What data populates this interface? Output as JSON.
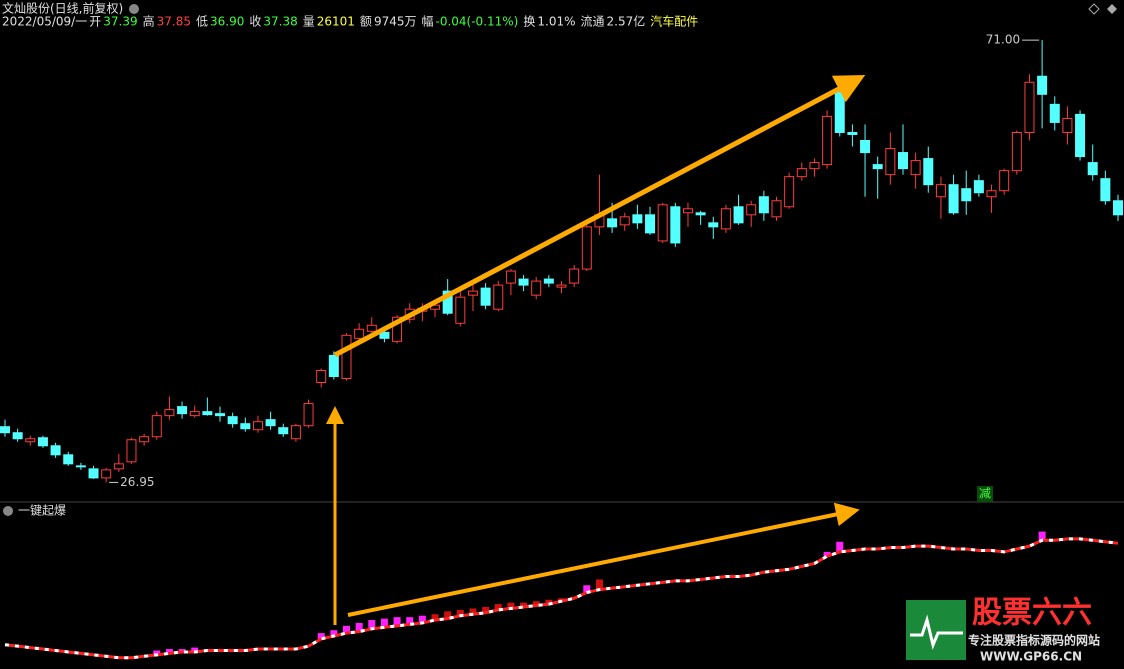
{
  "header": {
    "title": "文灿股份(日线,前复权)",
    "date": "2022/05/09/一",
    "stats": [
      {
        "label": "开",
        "value": "37.39",
        "color": "#3cff3c"
      },
      {
        "label": "高",
        "value": "37.85",
        "color": "#ff4040"
      },
      {
        "label": "低",
        "value": "36.90",
        "color": "#3cff3c"
      },
      {
        "label": "收",
        "value": "37.38",
        "color": "#3cff3c"
      },
      {
        "label": "量",
        "value": "26101",
        "color": "#ffff40"
      },
      {
        "label": "额",
        "value": "9745万",
        "color": "#e0e0e0"
      },
      {
        "label": "幅",
        "value": "-0.04(-0.11%)",
        "color": "#3cff3c"
      },
      {
        "label": "换",
        "value": "1.01%",
        "color": "#e0e0e0"
      },
      {
        "label": "流通",
        "value": "2.57亿",
        "color": "#e0e0e0"
      }
    ],
    "sector": "汽车配件"
  },
  "chart_data": {
    "type": "candlestick",
    "ylim": [
      25.2,
      73.0
    ],
    "up_color": "#ff3c3c",
    "down_color": "#54ffff",
    "annotations": {
      "high": {
        "value": 71,
        "label": "71.00"
      },
      "low": 26.95
    },
    "candles": [
      [
        32.5,
        33.2,
        31.5,
        31.9
      ],
      [
        31.9,
        32.3,
        31.0,
        31.3
      ],
      [
        31.0,
        31.6,
        30.6,
        31.3
      ],
      [
        31.4,
        31.6,
        30.4,
        30.6
      ],
      [
        30.6,
        30.9,
        29.4,
        29.7
      ],
      [
        29.7,
        30.0,
        28.6,
        28.8
      ],
      [
        28.6,
        28.9,
        28.2,
        28.5
      ],
      [
        28.3,
        28.6,
        27.3,
        27.4
      ],
      [
        27.4,
        28.4,
        26.95,
        28.2
      ],
      [
        28.3,
        29.8,
        28.0,
        28.8
      ],
      [
        29.0,
        31.4,
        28.8,
        31.2
      ],
      [
        31.0,
        31.8,
        30.6,
        31.5
      ],
      [
        31.5,
        34.0,
        31.2,
        33.6
      ],
      [
        33.6,
        35.5,
        33.2,
        34.2
      ],
      [
        34.5,
        35.0,
        33.3,
        33.8
      ],
      [
        33.6,
        34.6,
        33.4,
        34.0
      ],
      [
        34.0,
        35.4,
        33.6,
        33.7
      ],
      [
        33.8,
        34.5,
        33.0,
        33.6
      ],
      [
        33.5,
        33.9,
        32.4,
        32.8
      ],
      [
        32.8,
        33.4,
        32.0,
        32.3
      ],
      [
        32.2,
        33.6,
        31.9,
        33.0
      ],
      [
        33.2,
        34.0,
        32.2,
        32.6
      ],
      [
        32.4,
        32.8,
        31.5,
        31.8
      ],
      [
        31.3,
        32.8,
        31.0,
        32.6
      ],
      [
        32.6,
        35.2,
        32.4,
        34.8
      ],
      [
        36.9,
        38.3,
        36.4,
        38.1
      ],
      [
        39.6,
        40.0,
        37.2,
        37.5
      ],
      [
        37.3,
        41.8,
        37.1,
        41.6
      ],
      [
        41.3,
        42.8,
        40.8,
        42.2
      ],
      [
        42.0,
        43.4,
        41.8,
        42.6
      ],
      [
        41.9,
        42.5,
        40.9,
        41.3
      ],
      [
        41.0,
        43.6,
        40.8,
        43.4
      ],
      [
        43.2,
        44.8,
        42.8,
        44.2
      ],
      [
        44.0,
        44.8,
        43.0,
        44.3
      ],
      [
        44.2,
        44.8,
        43.4,
        44.6
      ],
      [
        46.0,
        47.2,
        43.6,
        43.8
      ],
      [
        42.8,
        46.2,
        42.5,
        45.4
      ],
      [
        45.6,
        46.8,
        44.0,
        46.0
      ],
      [
        46.3,
        46.8,
        44.2,
        44.6
      ],
      [
        44.2,
        47.0,
        44.0,
        46.6
      ],
      [
        46.8,
        48.2,
        45.6,
        48.0
      ],
      [
        47.2,
        47.6,
        46.0,
        46.6
      ],
      [
        45.6,
        47.4,
        45.2,
        47.0
      ],
      [
        47.2,
        47.6,
        46.4,
        46.8
      ],
      [
        46.4,
        47.0,
        45.8,
        46.6
      ],
      [
        46.8,
        48.6,
        46.4,
        48.2
      ],
      [
        48.2,
        52.6,
        48.0,
        52.4
      ],
      [
        52.4,
        57.6,
        51.6,
        53.6
      ],
      [
        53.2,
        54.8,
        51.8,
        52.4
      ],
      [
        52.6,
        53.8,
        52.0,
        53.4
      ],
      [
        53.6,
        54.6,
        52.2,
        52.8
      ],
      [
        53.6,
        54.4,
        51.6,
        51.8
      ],
      [
        51.0,
        54.8,
        50.8,
        54.6
      ],
      [
        54.4,
        54.8,
        50.4,
        50.8
      ],
      [
        53.8,
        54.8,
        52.4,
        54.2
      ],
      [
        53.8,
        54.0,
        52.6,
        53.6
      ],
      [
        52.8,
        53.4,
        51.2,
        52.4
      ],
      [
        52.2,
        54.6,
        51.8,
        54.2
      ],
      [
        54.4,
        55.6,
        52.6,
        52.8
      ],
      [
        53.6,
        55.0,
        52.4,
        54.6
      ],
      [
        55.4,
        56.0,
        53.0,
        53.8
      ],
      [
        53.4,
        55.4,
        53.0,
        55.0
      ],
      [
        54.4,
        57.8,
        54.2,
        57.4
      ],
      [
        57.4,
        58.8,
        57.0,
        58.2
      ],
      [
        58.2,
        59.2,
        57.4,
        58.8
      ],
      [
        58.6,
        64.0,
        58.2,
        63.4
      ],
      [
        65.8,
        66.4,
        61.4,
        61.8
      ],
      [
        61.8,
        62.6,
        60.4,
        61.6
      ],
      [
        61.0,
        62.6,
        55.4,
        59.8
      ],
      [
        58.6,
        59.4,
        55.2,
        58.2
      ],
      [
        57.6,
        61.8,
        56.6,
        60.2
      ],
      [
        59.8,
        62.6,
        57.6,
        58.2
      ],
      [
        57.6,
        59.8,
        56.2,
        59.0
      ],
      [
        59.2,
        60.4,
        55.8,
        56.6
      ],
      [
        55.4,
        57.4,
        53.2,
        56.6
      ],
      [
        56.6,
        57.6,
        53.6,
        53.8
      ],
      [
        56.2,
        58.0,
        53.6,
        55.0
      ],
      [
        57.0,
        57.6,
        55.4,
        55.8
      ],
      [
        55.4,
        56.6,
        53.8,
        56.0
      ],
      [
        56.0,
        58.2,
        55.6,
        58.0
      ],
      [
        58.0,
        62.0,
        57.6,
        61.8
      ],
      [
        61.8,
        67.6,
        61.0,
        66.8
      ],
      [
        67.4,
        71.0,
        62.2,
        65.6
      ],
      [
        64.6,
        65.4,
        62.0,
        62.8
      ],
      [
        61.8,
        64.4,
        60.6,
        63.2
      ],
      [
        63.6,
        64.0,
        59.0,
        59.4
      ],
      [
        58.8,
        60.6,
        57.0,
        57.6
      ],
      [
        57.2,
        58.0,
        54.6,
        55.0
      ],
      [
        55.0,
        55.6,
        53.0,
        53.6
      ]
    ],
    "indicator": {
      "name": "一键起爆",
      "signal": "减",
      "ylim": [
        0,
        100
      ],
      "line_color": "#ff2020",
      "magenta": "#ff20ff",
      "red": "#d01010",
      "line": [
        14,
        13,
        12,
        11,
        10,
        9,
        8,
        7,
        6,
        5,
        5,
        6,
        7,
        8,
        9,
        9,
        10,
        10,
        10,
        10,
        11,
        11,
        11,
        11,
        13,
        18,
        20,
        22,
        23,
        25,
        26,
        27,
        28,
        29,
        31,
        32,
        34,
        35,
        36,
        38,
        39,
        40,
        41,
        42,
        44,
        46,
        50,
        52,
        53,
        54,
        55,
        56,
        57,
        58,
        58,
        59,
        60,
        61,
        61,
        62,
        64,
        65,
        66,
        68,
        70,
        75,
        78,
        79,
        80,
        80,
        81,
        81,
        82,
        82,
        81,
        80,
        80,
        79,
        79,
        78,
        80,
        82,
        86,
        86,
        87,
        87,
        86,
        85,
        84
      ],
      "magenta_bars": [
        null,
        null,
        null,
        null,
        null,
        null,
        null,
        null,
        null,
        null,
        null,
        null,
        10,
        11,
        11,
        12,
        null,
        null,
        null,
        null,
        null,
        null,
        null,
        null,
        null,
        22,
        24,
        27,
        29,
        31,
        32,
        33,
        33,
        34,
        null,
        null,
        null,
        null,
        null,
        null,
        null,
        null,
        null,
        null,
        null,
        null,
        55,
        null,
        null,
        null,
        null,
        null,
        null,
        null,
        null,
        null,
        null,
        null,
        null,
        null,
        null,
        null,
        null,
        null,
        null,
        78,
        85,
        null,
        null,
        null,
        null,
        null,
        null,
        null,
        null,
        null,
        null,
        null,
        null,
        null,
        null,
        null,
        92,
        null,
        null,
        null,
        null,
        null,
        null
      ],
      "red_bars": [
        null,
        null,
        null,
        null,
        null,
        null,
        null,
        null,
        null,
        null,
        null,
        null,
        null,
        null,
        null,
        null,
        null,
        null,
        null,
        null,
        null,
        null,
        null,
        null,
        null,
        null,
        null,
        null,
        null,
        null,
        null,
        null,
        null,
        null,
        35,
        37,
        38,
        39,
        40,
        42,
        43,
        43,
        44,
        45,
        46,
        47,
        null,
        59,
        null,
        null,
        null,
        null,
        null,
        null,
        null,
        null,
        null,
        null,
        null,
        null,
        null,
        null,
        null,
        null,
        null,
        null,
        null,
        null,
        null,
        null,
        null,
        null,
        null,
        null,
        null,
        null,
        null,
        null,
        null,
        null,
        null,
        null,
        null,
        null,
        null,
        null,
        null,
        null,
        null
      ]
    }
  },
  "watermark": {
    "brand": "股票六六",
    "slogan": "专注股票指标源码的网站",
    "url": "WWW.GP66.CN"
  }
}
